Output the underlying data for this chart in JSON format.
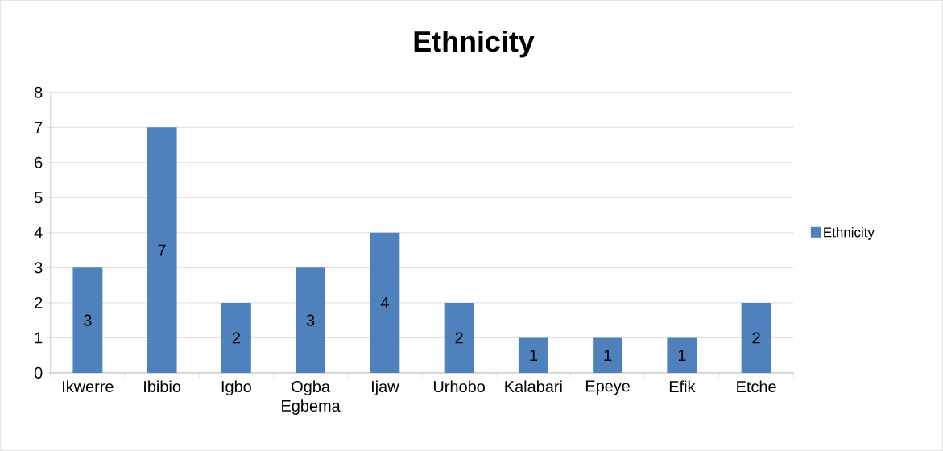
{
  "chart_data": {
    "type": "bar",
    "title": "Ethnicity",
    "categories": [
      "Ikwerre",
      "Ibibio",
      "Igbo",
      "Ogba Egbema",
      "Ijaw",
      "Urhobo",
      "Kalabari",
      "Epeye",
      "Efik",
      "Etche"
    ],
    "series": [
      {
        "name": "Ethnicity",
        "color": "#4f81bd",
        "values": [
          3,
          7,
          2,
          3,
          4,
          2,
          1,
          1,
          1,
          2
        ]
      }
    ],
    "ylim": [
      0,
      8
    ],
    "yticks": [
      0,
      1,
      2,
      3,
      4,
      5,
      6,
      7,
      8
    ],
    "grid": "y",
    "legend": "right",
    "data_labels": true
  }
}
